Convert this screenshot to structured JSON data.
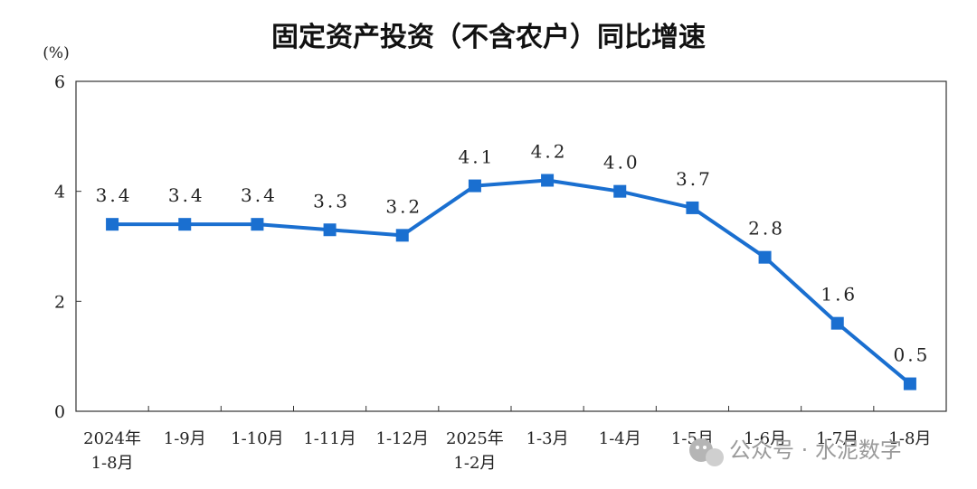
{
  "chart_data": {
    "type": "line",
    "title": "固定资产投资（不含农户）同比增速",
    "ylabel": "(%)",
    "ylim": [
      0,
      6
    ],
    "yticks": [
      0,
      2,
      4,
      6
    ],
    "categories": [
      [
        "2024年",
        "1-8月"
      ],
      [
        "1-9月"
      ],
      [
        "1-10月"
      ],
      [
        "1-11月"
      ],
      [
        "1-12月"
      ],
      [
        "2025年",
        "1-2月"
      ],
      [
        "1-3月"
      ],
      [
        "1-4月"
      ],
      [
        "1-5月"
      ],
      [
        "1-6月"
      ],
      [
        "1-7月"
      ],
      [
        "1-8月"
      ]
    ],
    "series": [
      {
        "values": [
          3.4,
          3.4,
          3.4,
          3.3,
          3.2,
          4.1,
          4.2,
          4.0,
          3.7,
          2.8,
          1.6,
          0.5
        ],
        "labels": [
          "3.4",
          "3.4",
          "3.4",
          "3.3",
          "3.2",
          "4.1",
          "4.2",
          "4.0",
          "3.7",
          "2.8",
          "1.6",
          "0.5"
        ],
        "color": "#1a6fd0",
        "marker": "square"
      }
    ],
    "grid": false,
    "legend": "none"
  },
  "watermark": {
    "text": "公众号 · 水泥数字",
    "icon": "wechat-icon"
  }
}
